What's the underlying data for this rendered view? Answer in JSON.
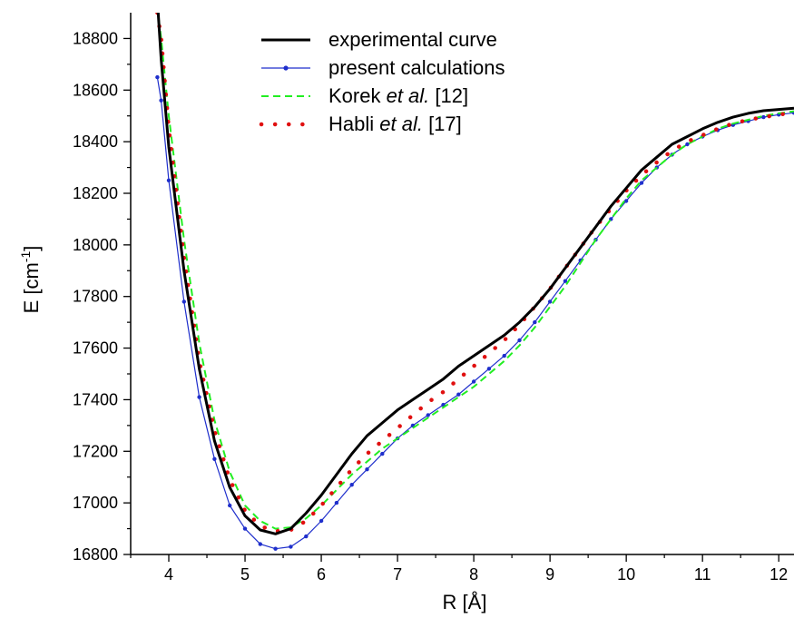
{
  "chart_data": {
    "type": "line",
    "xlabel": "R [Å]",
    "ylabel": "E [cm",
    "ylabel_sup": "-1",
    "ylabel_end": "]",
    "xlim": [
      3.5,
      12.2
    ],
    "ylim": [
      16800,
      18900
    ],
    "xticks": [
      4,
      5,
      6,
      7,
      8,
      9,
      10,
      11,
      12
    ],
    "yticks": [
      16800,
      17000,
      17200,
      17400,
      17600,
      17800,
      18000,
      18200,
      18400,
      18600,
      18800
    ],
    "grid": false,
    "legend_position": "top-center",
    "series": [
      {
        "name": "experimental curve",
        "style": "solid",
        "color": "#000000",
        "points": [
          [
            3.85,
            18950
          ],
          [
            3.9,
            18720
          ],
          [
            4.0,
            18380
          ],
          [
            4.2,
            17900
          ],
          [
            4.4,
            17520
          ],
          [
            4.6,
            17240
          ],
          [
            4.8,
            17060
          ],
          [
            5.0,
            16950
          ],
          [
            5.2,
            16895
          ],
          [
            5.4,
            16880
          ],
          [
            5.6,
            16900
          ],
          [
            5.8,
            16960
          ],
          [
            6.0,
            17030
          ],
          [
            6.2,
            17110
          ],
          [
            6.4,
            17190
          ],
          [
            6.6,
            17260
          ],
          [
            6.8,
            17310
          ],
          [
            7.0,
            17360
          ],
          [
            7.2,
            17400
          ],
          [
            7.4,
            17440
          ],
          [
            7.6,
            17480
          ],
          [
            7.8,
            17530
          ],
          [
            8.0,
            17570
          ],
          [
            8.2,
            17610
          ],
          [
            8.4,
            17650
          ],
          [
            8.6,
            17700
          ],
          [
            8.8,
            17760
          ],
          [
            9.0,
            17830
          ],
          [
            9.2,
            17910
          ],
          [
            9.4,
            17990
          ],
          [
            9.6,
            18070
          ],
          [
            9.8,
            18150
          ],
          [
            10.0,
            18220
          ],
          [
            10.2,
            18290
          ],
          [
            10.4,
            18340
          ],
          [
            10.6,
            18390
          ],
          [
            10.8,
            18420
          ],
          [
            11.0,
            18450
          ],
          [
            11.2,
            18475
          ],
          [
            11.4,
            18495
          ],
          [
            11.6,
            18510
          ],
          [
            11.8,
            18520
          ],
          [
            12.0,
            18525
          ],
          [
            12.2,
            18530
          ]
        ]
      },
      {
        "name": "present calculations",
        "style": "line-markers",
        "color": "#1f2fcc",
        "points": [
          [
            3.85,
            18650
          ],
          [
            3.9,
            18560
          ],
          [
            4.0,
            18250
          ],
          [
            4.2,
            17780
          ],
          [
            4.4,
            17410
          ],
          [
            4.6,
            17170
          ],
          [
            4.8,
            16990
          ],
          [
            5.0,
            16900
          ],
          [
            5.2,
            16840
          ],
          [
            5.4,
            16822
          ],
          [
            5.6,
            16830
          ],
          [
            5.8,
            16870
          ],
          [
            6.0,
            16930
          ],
          [
            6.2,
            17000
          ],
          [
            6.4,
            17070
          ],
          [
            6.6,
            17130
          ],
          [
            6.8,
            17190
          ],
          [
            7.0,
            17250
          ],
          [
            7.2,
            17300
          ],
          [
            7.4,
            17340
          ],
          [
            7.6,
            17380
          ],
          [
            7.8,
            17420
          ],
          [
            8.0,
            17470
          ],
          [
            8.2,
            17520
          ],
          [
            8.4,
            17570
          ],
          [
            8.6,
            17630
          ],
          [
            8.8,
            17700
          ],
          [
            9.0,
            17780
          ],
          [
            9.2,
            17860
          ],
          [
            9.4,
            17940
          ],
          [
            9.6,
            18020
          ],
          [
            9.8,
            18100
          ],
          [
            10.0,
            18170
          ],
          [
            10.2,
            18240
          ],
          [
            10.4,
            18300
          ],
          [
            10.6,
            18350
          ],
          [
            10.8,
            18390
          ],
          [
            11.0,
            18420
          ],
          [
            11.2,
            18445
          ],
          [
            11.4,
            18465
          ],
          [
            11.6,
            18480
          ],
          [
            11.8,
            18495
          ],
          [
            12.0,
            18505
          ],
          [
            12.2,
            18512
          ]
        ]
      },
      {
        "name": "Korek et al. [12]",
        "name_parts": [
          "Korek ",
          "et al.",
          " [12]"
        ],
        "style": "dashed",
        "color": "#22ee22",
        "points": [
          [
            3.85,
            18920
          ],
          [
            3.9,
            18800
          ],
          [
            4.0,
            18500
          ],
          [
            4.2,
            18020
          ],
          [
            4.4,
            17620
          ],
          [
            4.6,
            17320
          ],
          [
            4.8,
            17120
          ],
          [
            5.0,
            16990
          ],
          [
            5.2,
            16930
          ],
          [
            5.4,
            16900
          ],
          [
            5.6,
            16905
          ],
          [
            5.8,
            16940
          ],
          [
            6.0,
            16990
          ],
          [
            6.2,
            17050
          ],
          [
            6.4,
            17110
          ],
          [
            6.6,
            17160
          ],
          [
            6.8,
            17210
          ],
          [
            7.0,
            17250
          ],
          [
            7.2,
            17290
          ],
          [
            7.4,
            17330
          ],
          [
            7.6,
            17370
          ],
          [
            7.8,
            17410
          ],
          [
            8.0,
            17450
          ],
          [
            8.2,
            17500
          ],
          [
            8.4,
            17550
          ],
          [
            8.6,
            17610
          ],
          [
            8.8,
            17680
          ],
          [
            9.0,
            17760
          ],
          [
            9.2,
            17840
          ],
          [
            9.4,
            17930
          ],
          [
            9.6,
            18020
          ],
          [
            9.8,
            18100
          ],
          [
            10.0,
            18180
          ],
          [
            10.2,
            18250
          ],
          [
            10.4,
            18300
          ],
          [
            10.6,
            18350
          ],
          [
            10.8,
            18390
          ],
          [
            11.0,
            18420
          ],
          [
            11.2,
            18450
          ],
          [
            11.4,
            18470
          ],
          [
            11.6,
            18485
          ],
          [
            11.8,
            18500
          ],
          [
            12.0,
            18510
          ],
          [
            12.2,
            18518
          ]
        ]
      },
      {
        "name": "Habli et al. [17]",
        "name_parts": [
          "Habli ",
          "et al.",
          " [17]"
        ],
        "style": "dotted",
        "color": "#e01010",
        "points": [
          [
            3.85,
            18900
          ],
          [
            3.9,
            18800
          ],
          [
            4.0,
            18450
          ],
          [
            4.2,
            17950
          ],
          [
            4.4,
            17550
          ],
          [
            4.6,
            17280
          ],
          [
            4.8,
            17090
          ],
          [
            5.0,
            16970
          ],
          [
            5.2,
            16910
          ],
          [
            5.4,
            16890
          ],
          [
            5.6,
            16895
          ],
          [
            5.8,
            16930
          ],
          [
            6.0,
            16990
          ],
          [
            6.2,
            17060
          ],
          [
            6.4,
            17130
          ],
          [
            6.6,
            17190
          ],
          [
            6.8,
            17240
          ],
          [
            7.0,
            17290
          ],
          [
            7.2,
            17340
          ],
          [
            7.4,
            17390
          ],
          [
            7.6,
            17430
          ],
          [
            7.8,
            17480
          ],
          [
            8.0,
            17530
          ],
          [
            8.2,
            17580
          ],
          [
            8.4,
            17630
          ],
          [
            8.6,
            17690
          ],
          [
            8.8,
            17760
          ],
          [
            9.0,
            17830
          ],
          [
            9.2,
            17910
          ],
          [
            9.4,
            17990
          ],
          [
            9.6,
            18070
          ],
          [
            9.8,
            18140
          ],
          [
            10.0,
            18210
          ],
          [
            10.2,
            18270
          ],
          [
            10.4,
            18320
          ],
          [
            10.6,
            18365
          ],
          [
            10.8,
            18400
          ],
          [
            11.0,
            18425
          ],
          [
            11.2,
            18450
          ],
          [
            11.4,
            18470
          ],
          [
            11.6,
            18485
          ],
          [
            11.8,
            18495
          ],
          [
            12.0,
            18505
          ],
          [
            12.2,
            18512
          ]
        ]
      }
    ]
  }
}
